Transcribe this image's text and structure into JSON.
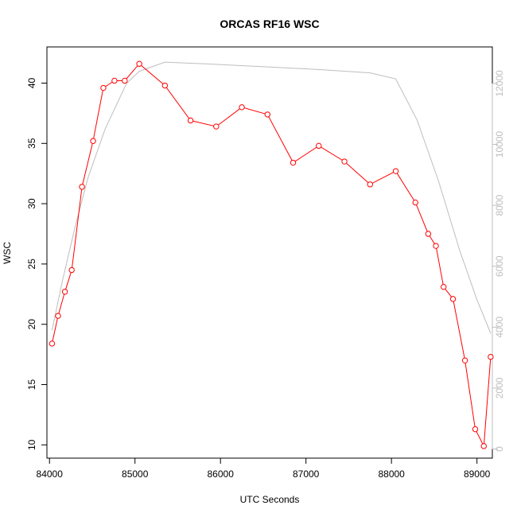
{
  "chart_data": {
    "type": "line",
    "title": "ORCAS RF16 WSC",
    "xlabel": "UTC Seconds",
    "ylabel": "WSC",
    "xlim": [
      83970,
      89180
    ],
    "ylim": [
      8.9,
      43.0
    ],
    "y2lim": [
      -300,
      13200
    ],
    "x_ticks": [
      84000,
      85000,
      86000,
      87000,
      88000,
      89000
    ],
    "y_ticks": [
      10,
      15,
      20,
      25,
      30,
      35,
      40
    ],
    "y2_ticks": [
      0,
      2000,
      4000,
      6000,
      8000,
      10000,
      12000
    ],
    "grid": false,
    "series": [
      {
        "axis": "left",
        "color": "#ff0000",
        "marker": "open-circle",
        "x": [
          84030,
          84100,
          84180,
          84260,
          84380,
          84510,
          84630,
          84760,
          84880,
          85050,
          85350,
          85650,
          85950,
          86250,
          86550,
          86850,
          87150,
          87450,
          87750,
          88050,
          88280,
          88430,
          88520,
          88610,
          88720,
          88860,
          88980,
          89080,
          89160
        ],
        "y": [
          18.4,
          20.7,
          22.7,
          24.5,
          31.4,
          35.2,
          39.6,
          40.2,
          40.2,
          41.6,
          39.8,
          36.9,
          36.4,
          38.0,
          37.4,
          33.4,
          34.8,
          33.5,
          31.6,
          32.7,
          30.1,
          27.5,
          26.5,
          23.1,
          22.1,
          17.0,
          11.3,
          9.9,
          17.3
        ]
      },
      {
        "axis": "right",
        "color": "#bebebe",
        "marker": "none",
        "x": [
          84030,
          84150,
          84300,
          84450,
          84650,
          84900,
          85050,
          85350,
          85800,
          86500,
          87200,
          87750,
          88050,
          88300,
          88550,
          88800,
          89000,
          89160
        ],
        "y": [
          3900,
          5500,
          7300,
          8900,
          10500,
          12000,
          12400,
          12700,
          12650,
          12550,
          12450,
          12350,
          12150,
          10800,
          8800,
          6500,
          4900,
          3800
        ]
      }
    ]
  }
}
